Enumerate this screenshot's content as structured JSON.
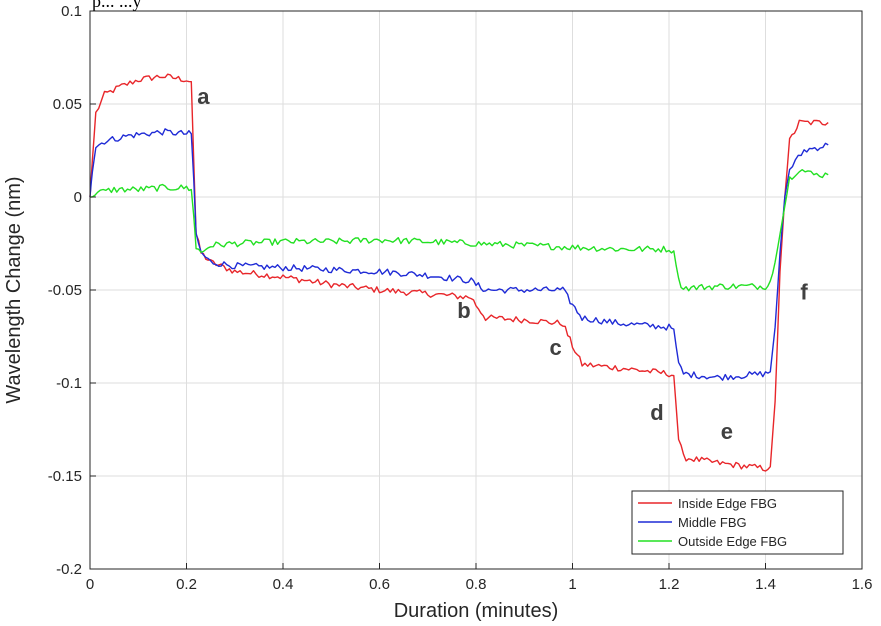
{
  "top_text_fragment": "p...    ...y",
  "chart_data": {
    "type": "line",
    "title": "",
    "xlabel": "Duration (minutes)",
    "ylabel": "Wavelength Change (nm)",
    "xlim": [
      0,
      1.6
    ],
    "ylim": [
      -0.2,
      0.1
    ],
    "xticks": [
      0,
      0.2,
      0.4,
      0.6,
      0.8,
      1,
      1.2,
      1.4,
      1.6
    ],
    "xtick_labels": [
      "0",
      "0.2",
      "0.4",
      "0.6",
      "0.8",
      "1",
      "1.2",
      "1.4",
      "1.6"
    ],
    "yticks": [
      0.1,
      0.05,
      0,
      -0.05,
      -0.1,
      -0.15,
      -0.2
    ],
    "ytick_labels": [
      "0.1",
      "0.05",
      "0",
      "-0.05",
      "-0.1",
      "-0.15",
      "-0.2"
    ],
    "grid": true,
    "legend_position": "bottom-right",
    "series": [
      {
        "name": "Inside Edge FBG",
        "color": "#e8262a",
        "points": [
          [
            0,
            0
          ],
          [
            0.005,
            0.02
          ],
          [
            0.012,
            0.045
          ],
          [
            0.03,
            0.055
          ],
          [
            0.06,
            0.059
          ],
          [
            0.1,
            0.063
          ],
          [
            0.15,
            0.065
          ],
          [
            0.2,
            0.063
          ],
          [
            0.21,
            0.062
          ],
          [
            0.215,
            0.02
          ],
          [
            0.22,
            -0.02
          ],
          [
            0.23,
            -0.03
          ],
          [
            0.25,
            -0.035
          ],
          [
            0.3,
            -0.04
          ],
          [
            0.4,
            -0.043
          ],
          [
            0.5,
            -0.047
          ],
          [
            0.6,
            -0.05
          ],
          [
            0.7,
            -0.052
          ],
          [
            0.79,
            -0.054
          ],
          [
            0.8,
            -0.058
          ],
          [
            0.82,
            -0.065
          ],
          [
            0.9,
            -0.066
          ],
          [
            0.98,
            -0.068
          ],
          [
            1.0,
            -0.08
          ],
          [
            1.02,
            -0.09
          ],
          [
            1.1,
            -0.092
          ],
          [
            1.2,
            -0.095
          ],
          [
            1.21,
            -0.096
          ],
          [
            1.22,
            -0.13
          ],
          [
            1.23,
            -0.14
          ],
          [
            1.3,
            -0.143
          ],
          [
            1.4,
            -0.146
          ],
          [
            1.41,
            -0.145
          ],
          [
            1.42,
            -0.11
          ],
          [
            1.43,
            -0.04
          ],
          [
            1.44,
            0.0
          ],
          [
            1.45,
            0.03
          ],
          [
            1.47,
            0.04
          ],
          [
            1.5,
            0.04
          ],
          [
            1.53,
            0.04
          ]
        ]
      },
      {
        "name": "Middle FBG",
        "color": "#1f2bd6",
        "points": [
          [
            0,
            0
          ],
          [
            0.005,
            0.015
          ],
          [
            0.012,
            0.027
          ],
          [
            0.03,
            0.03
          ],
          [
            0.08,
            0.033
          ],
          [
            0.15,
            0.035
          ],
          [
            0.2,
            0.034
          ],
          [
            0.21,
            0.034
          ],
          [
            0.215,
            0.01
          ],
          [
            0.22,
            -0.02
          ],
          [
            0.23,
            -0.03
          ],
          [
            0.25,
            -0.035
          ],
          [
            0.3,
            -0.037
          ],
          [
            0.4,
            -0.038
          ],
          [
            0.5,
            -0.039
          ],
          [
            0.6,
            -0.04
          ],
          [
            0.7,
            -0.042
          ],
          [
            0.79,
            -0.045
          ],
          [
            0.8,
            -0.047
          ],
          [
            0.82,
            -0.05
          ],
          [
            0.9,
            -0.05
          ],
          [
            0.98,
            -0.05
          ],
          [
            1.0,
            -0.058
          ],
          [
            1.02,
            -0.065
          ],
          [
            1.1,
            -0.068
          ],
          [
            1.2,
            -0.07
          ],
          [
            1.21,
            -0.071
          ],
          [
            1.22,
            -0.09
          ],
          [
            1.23,
            -0.095
          ],
          [
            1.3,
            -0.097
          ],
          [
            1.4,
            -0.095
          ],
          [
            1.41,
            -0.094
          ],
          [
            1.42,
            -0.07
          ],
          [
            1.43,
            -0.03
          ],
          [
            1.44,
            0.0
          ],
          [
            1.45,
            0.015
          ],
          [
            1.48,
            0.025
          ],
          [
            1.53,
            0.028
          ]
        ]
      },
      {
        "name": "Outside Edge FBG",
        "color": "#22e022",
        "points": [
          [
            0,
            0
          ],
          [
            0.01,
            0.002
          ],
          [
            0.05,
            0.004
          ],
          [
            0.1,
            0.004
          ],
          [
            0.15,
            0.005
          ],
          [
            0.2,
            0.005
          ],
          [
            0.21,
            0.004
          ],
          [
            0.215,
            -0.01
          ],
          [
            0.22,
            -0.027
          ],
          [
            0.23,
            -0.03
          ],
          [
            0.25,
            -0.026
          ],
          [
            0.3,
            -0.025
          ],
          [
            0.4,
            -0.024
          ],
          [
            0.5,
            -0.024
          ],
          [
            0.6,
            -0.023
          ],
          [
            0.7,
            -0.024
          ],
          [
            0.8,
            -0.025
          ],
          [
            0.9,
            -0.026
          ],
          [
            1.0,
            -0.027
          ],
          [
            1.1,
            -0.028
          ],
          [
            1.2,
            -0.028
          ],
          [
            1.21,
            -0.029
          ],
          [
            1.22,
            -0.045
          ],
          [
            1.23,
            -0.049
          ],
          [
            1.3,
            -0.048
          ],
          [
            1.4,
            -0.048
          ],
          [
            1.41,
            -0.045
          ],
          [
            1.42,
            -0.035
          ],
          [
            1.43,
            -0.02
          ],
          [
            1.44,
            -0.005
          ],
          [
            1.45,
            0.01
          ],
          [
            1.47,
            0.015
          ],
          [
            1.5,
            0.012
          ],
          [
            1.53,
            0.012
          ]
        ]
      }
    ],
    "annotations": [
      {
        "text": "a",
        "x": 0.235,
        "y": 0.05
      },
      {
        "text": "b",
        "x": 0.775,
        "y": -0.065
      },
      {
        "text": "c",
        "x": 0.965,
        "y": -0.085
      },
      {
        "text": "d",
        "x": 1.175,
        "y": -0.12
      },
      {
        "text": "e",
        "x": 1.32,
        "y": -0.13
      },
      {
        "text": "f",
        "x": 1.48,
        "y": -0.055
      }
    ]
  }
}
